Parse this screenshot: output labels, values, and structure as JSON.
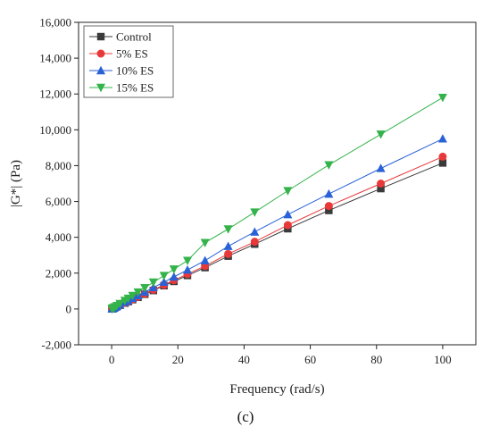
{
  "chart_data": {
    "type": "scatter",
    "xlabel": "Frequency (rad/s)",
    "ylabel": "|G*| (Pa)",
    "xlim": [
      -10,
      110
    ],
    "ylim": [
      -2000,
      16000
    ],
    "xticks": [
      0,
      20,
      40,
      60,
      80,
      100
    ],
    "yticks": [
      -2000,
      0,
      2000,
      4000,
      6000,
      8000,
      10000,
      12000,
      14000,
      16000
    ],
    "ytick_labels": [
      "-2,000",
      "0",
      "2,000",
      "4,000",
      "6,000",
      "8,000",
      "10,000",
      "12,000",
      "14,000",
      "16,000"
    ],
    "grid": false,
    "legend_placement": "top-left",
    "panel_label": "(c)",
    "x": [
      0.1,
      0.16,
      0.25,
      0.4,
      0.63,
      1.0,
      1.58,
      2.51,
      3.98,
      5.0,
      6.31,
      7.94,
      10,
      12.6,
      15.8,
      18.8,
      22.9,
      28.2,
      35.2,
      43.2,
      53.2,
      65.6,
      81.3,
      100
    ],
    "series": [
      {
        "name": "Control",
        "marker": "square",
        "color": "#3a3a3a",
        "values": [
          8,
          13,
          20,
          33,
          52,
          82,
          130,
          206,
          327,
          410,
          518,
          652,
          820,
          1030,
          1300,
          1540,
          1870,
          2310,
          2950,
          3620,
          4480,
          5500,
          6720,
          8150
        ]
      },
      {
        "name": "5% ES",
        "marker": "circle",
        "color": "#e8393a",
        "values": [
          9,
          14,
          21,
          34,
          54,
          85,
          134,
          213,
          338,
          425,
          536,
          675,
          850,
          1070,
          1340,
          1600,
          1950,
          2400,
          3070,
          3750,
          4680,
          5750,
          7000,
          8500
        ]
      },
      {
        "name": "10% ES",
        "marker": "triangle-up",
        "color": "#2962d6",
        "values": [
          10,
          15,
          24,
          38,
          60,
          95,
          150,
          238,
          378,
          475,
          600,
          755,
          950,
          1200,
          1500,
          1790,
          2180,
          2700,
          3500,
          4300,
          5270,
          6420,
          7850,
          9500
        ]
      },
      {
        "name": "15% ES",
        "marker": "triangle-down",
        "color": "#33b34a",
        "values": [
          12,
          19,
          30,
          47,
          74,
          118,
          186,
          296,
          470,
          590,
          745,
          938,
          1180,
          1490,
          1860,
          2220,
          2700,
          3700,
          4460,
          5400,
          6600,
          8040,
          9750,
          11800
        ]
      }
    ]
  }
}
